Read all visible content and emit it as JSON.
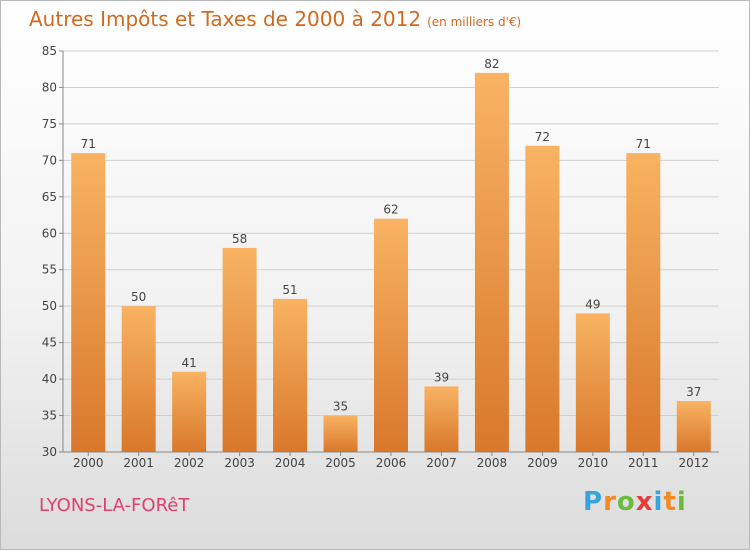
{
  "title": "Autres Impôts et Taxes de 2000 à 2012",
  "subtitle": "(en milliers d'€)",
  "location": "LYONS-LA-FORêT",
  "brand": {
    "text": "Proxiti",
    "letters": [
      "P",
      "r",
      "o",
      "x",
      "i",
      "t",
      "i"
    ],
    "colors": [
      "#3aa3dc",
      "#f08a24",
      "#6dbb3c",
      "#e83a3a",
      "#3aa3dc",
      "#f08a24",
      "#6dbb3c"
    ]
  },
  "colors": {
    "bar_light": "#f8b363",
    "bar_dark": "#d9782b",
    "title": "#d2691e",
    "grid": "#cfcfcf",
    "axis": "#888888",
    "label": "#444444"
  },
  "chart_data": {
    "type": "bar",
    "categories": [
      "2000",
      "2001",
      "2002",
      "2003",
      "2004",
      "2005",
      "2006",
      "2007",
      "2008",
      "2009",
      "2010",
      "2011",
      "2012"
    ],
    "values": [
      71,
      50,
      41,
      58,
      51,
      35,
      62,
      39,
      82,
      72,
      49,
      71,
      37
    ],
    "ylim": [
      30,
      85
    ],
    "yticks": [
      30,
      35,
      40,
      45,
      50,
      55,
      60,
      65,
      70,
      75,
      80,
      85
    ],
    "grid": true,
    "data_labels": true
  }
}
